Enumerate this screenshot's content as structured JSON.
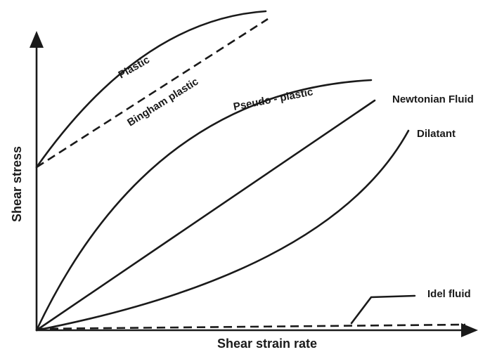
{
  "chart_data": {
    "type": "line",
    "title": "",
    "xlabel": "Shear strain rate",
    "ylabel": "Shear stress",
    "axis_ticks": "none",
    "grid": false,
    "legend": "none (inline labels)",
    "colors": {
      "ink": "#1a1a1a"
    },
    "series": [
      {
        "name": "Plastic",
        "style": "solid",
        "shape": "concave",
        "points": [
          [
            0,
            0.8
          ],
          [
            1.3,
            1.6
          ]
        ]
      },
      {
        "name": "Bingham plastic",
        "style": "dashed",
        "shape": "linear",
        "points": [
          [
            0,
            0.8
          ],
          [
            1.3,
            1.54
          ]
        ]
      },
      {
        "name": "Pseudo - plastic",
        "style": "solid",
        "shape": "concave",
        "points": [
          [
            0,
            0
          ],
          [
            1.2,
            1.25
          ]
        ]
      },
      {
        "name": "Newtonian Fluid",
        "style": "solid",
        "shape": "linear",
        "points": [
          [
            0,
            0
          ],
          [
            1.2,
            1.12
          ]
        ]
      },
      {
        "name": "Dilatant",
        "style": "solid",
        "shape": "convex",
        "points": [
          [
            0,
            0
          ],
          [
            1.4,
            0.97
          ]
        ]
      },
      {
        "name": "Idel fluid",
        "style": "dashed",
        "shape": "linear",
        "points": [
          [
            0,
            0
          ],
          [
            1.6,
            0.01
          ]
        ]
      }
    ]
  }
}
